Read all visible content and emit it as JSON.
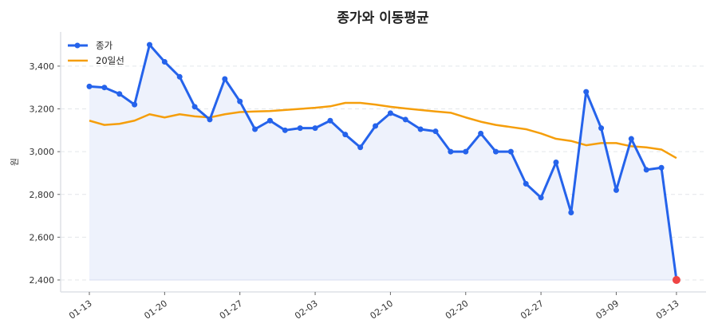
{
  "chart_data": {
    "type": "line",
    "title": "종가와 이동평균",
    "xlabel": "",
    "ylabel": "원",
    "x_tick_labels": [
      {
        "index": 0,
        "label": "01-13"
      },
      {
        "index": 5,
        "label": "01-20"
      },
      {
        "index": 10,
        "label": "01-27"
      },
      {
        "index": 15,
        "label": "02-03"
      },
      {
        "index": 20,
        "label": "02-10"
      },
      {
        "index": 25,
        "label": "02-20"
      },
      {
        "index": 30,
        "label": "02-27"
      },
      {
        "index": 35,
        "label": "03-09"
      },
      {
        "index": 39,
        "label": "03-13"
      }
    ],
    "y_ticks": [
      2400,
      2600,
      2800,
      3000,
      3200,
      3400
    ],
    "y_tick_labels": [
      "2,400",
      "2,600",
      "2,800",
      "3,000",
      "3,200",
      "3,400"
    ],
    "ylim": [
      2344,
      3560
    ],
    "grid": "horizontal dashed",
    "legend": "top-left",
    "series": [
      {
        "name": "종가",
        "color": "#2563eb",
        "fill": "#eef2fc",
        "markers": true,
        "last_point_color": "#ef4444",
        "values": [
          3305,
          3300,
          3270,
          3220,
          3500,
          3420,
          3350,
          3210,
          3150,
          3340,
          3235,
          3105,
          3145,
          3100,
          3110,
          3110,
          3145,
          3080,
          3020,
          3120,
          3180,
          3150,
          3105,
          3095,
          3000,
          3000,
          3085,
          3000,
          3000,
          2850,
          2785,
          2950,
          2715,
          3280,
          3110,
          2820,
          3060,
          2915,
          2925,
          2400
        ]
      },
      {
        "name": "20일선",
        "color": "#f59e0b",
        "markers": false,
        "values": [
          3145,
          3125,
          3130,
          3145,
          3175,
          3160,
          3175,
          3165,
          3160,
          3175,
          3185,
          3188,
          3190,
          3195,
          3200,
          3205,
          3212,
          3228,
          3228,
          3220,
          3210,
          3202,
          3195,
          3188,
          3182,
          3160,
          3140,
          3125,
          3115,
          3105,
          3085,
          3060,
          3050,
          3030,
          3040,
          3040,
          3025,
          3020,
          3010,
          2970
        ]
      }
    ]
  }
}
